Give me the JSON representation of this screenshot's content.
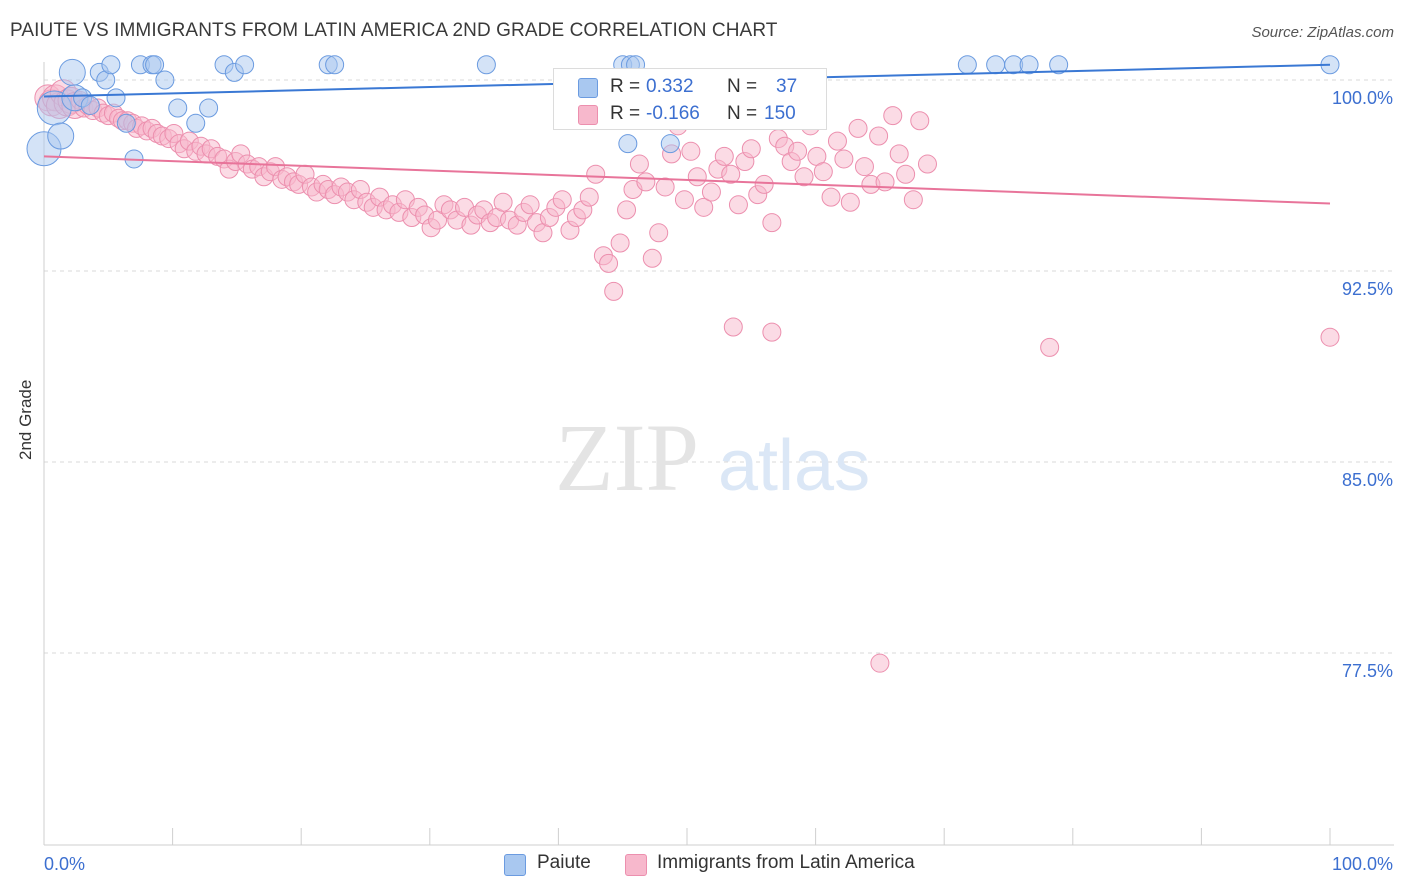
{
  "header": {
    "title": "PAIUTE VS IMMIGRANTS FROM LATIN AMERICA 2ND GRADE CORRELATION CHART",
    "source": "Source: ZipAtlas.com"
  },
  "watermark": {
    "zip": "ZIP",
    "atlas": "atlas"
  },
  "legend_top": {
    "r_label": "R =",
    "n_label": "N =",
    "series": [
      {
        "name": "Paiute",
        "r": "0.332",
        "n": "37"
      },
      {
        "name": "Immigrants from Latin America",
        "r": "-0.166",
        "n": "150"
      }
    ]
  },
  "colors": {
    "paiute_fill": "#a9c8f0",
    "paiute_stroke": "#6b9be0",
    "paiute_line": "#3a78d4",
    "latin_fill": "#f7b8cc",
    "latin_stroke": "#ec8fae",
    "latin_line": "#e8749a",
    "axis_text": "#3c6fd0",
    "grid": "#d8d8d8"
  },
  "chart_data": {
    "type": "scatter",
    "title": "PAIUTE VS IMMIGRANTS FROM LATIN AMERICA 2ND GRADE CORRELATION CHART",
    "xlabel": "",
    "ylabel": "2nd Grade",
    "xlim": [
      0,
      100
    ],
    "ylim": [
      70.0,
      101.0
    ],
    "x_tick_labels": [
      "0.0%",
      "100.0%"
    ],
    "y_ticks": [
      100.0,
      92.5,
      85.0,
      77.5
    ],
    "y_tick_labels": [
      "100.0%",
      "92.5%",
      "85.0%",
      "77.5%"
    ],
    "series": [
      {
        "name": "Paiute",
        "r": 0.332,
        "n": 37,
        "trend": {
          "x": [
            0,
            100
          ],
          "y": [
            99.35,
            100.6
          ]
        },
        "points": [
          [
            0.0,
            97.3
          ],
          [
            0.8,
            98.9
          ],
          [
            1.3,
            97.8
          ],
          [
            2.2,
            100.3
          ],
          [
            2.4,
            99.3
          ],
          [
            3.0,
            99.3
          ],
          [
            3.6,
            99.0
          ],
          [
            4.3,
            100.3
          ],
          [
            4.8,
            100.0
          ],
          [
            5.2,
            100.6
          ],
          [
            5.6,
            99.3
          ],
          [
            6.4,
            98.3
          ],
          [
            7.0,
            96.9
          ],
          [
            7.5,
            100.6
          ],
          [
            8.4,
            100.6
          ],
          [
            8.6,
            100.6
          ],
          [
            9.4,
            100.0
          ],
          [
            10.4,
            98.9
          ],
          [
            11.8,
            98.3
          ],
          [
            12.8,
            98.9
          ],
          [
            14.0,
            100.6
          ],
          [
            14.8,
            100.3
          ],
          [
            15.6,
            100.6
          ],
          [
            22.1,
            100.6
          ],
          [
            22.6,
            100.6
          ],
          [
            34.4,
            100.6
          ],
          [
            45.0,
            100.6
          ],
          [
            45.6,
            100.6
          ],
          [
            46.0,
            100.6
          ],
          [
            45.4,
            97.5
          ],
          [
            48.7,
            97.5
          ],
          [
            71.8,
            100.6
          ],
          [
            74.0,
            100.6
          ],
          [
            75.4,
            100.6
          ],
          [
            76.6,
            100.6
          ],
          [
            78.9,
            100.6
          ],
          [
            100.0,
            100.6
          ]
        ]
      },
      {
        "name": "Immigrants from Latin America",
        "r": -0.166,
        "n": 150,
        "trend": {
          "x": [
            0,
            100
          ],
          "y": [
            97.0,
            95.15
          ]
        },
        "points": [
          [
            0.3,
            99.3
          ],
          [
            0.6,
            99.1
          ],
          [
            0.9,
            99.3
          ],
          [
            1.2,
            99.0
          ],
          [
            1.5,
            99.5
          ],
          [
            1.8,
            99.1
          ],
          [
            2.1,
            99.2
          ],
          [
            2.4,
            99.0
          ],
          [
            2.8,
            99.2
          ],
          [
            3.1,
            98.9
          ],
          [
            3.4,
            99.0
          ],
          [
            3.8,
            98.8
          ],
          [
            4.2,
            98.9
          ],
          [
            4.6,
            98.7
          ],
          [
            5.0,
            98.6
          ],
          [
            5.4,
            98.7
          ],
          [
            5.8,
            98.5
          ],
          [
            6.1,
            98.4
          ],
          [
            6.5,
            98.4
          ],
          [
            6.9,
            98.3
          ],
          [
            7.2,
            98.1
          ],
          [
            7.6,
            98.2
          ],
          [
            8.0,
            98.0
          ],
          [
            8.4,
            98.1
          ],
          [
            8.8,
            97.9
          ],
          [
            9.2,
            97.8
          ],
          [
            9.7,
            97.7
          ],
          [
            10.1,
            97.9
          ],
          [
            10.5,
            97.5
          ],
          [
            10.9,
            97.3
          ],
          [
            11.3,
            97.6
          ],
          [
            11.8,
            97.2
          ],
          [
            12.2,
            97.4
          ],
          [
            12.6,
            97.1
          ],
          [
            13.0,
            97.3
          ],
          [
            13.5,
            97.0
          ],
          [
            14.0,
            96.9
          ],
          [
            14.4,
            96.5
          ],
          [
            14.9,
            96.8
          ],
          [
            15.3,
            97.1
          ],
          [
            15.8,
            96.7
          ],
          [
            16.2,
            96.5
          ],
          [
            16.7,
            96.6
          ],
          [
            17.1,
            96.2
          ],
          [
            17.6,
            96.4
          ],
          [
            18.0,
            96.6
          ],
          [
            18.5,
            96.1
          ],
          [
            18.9,
            96.2
          ],
          [
            19.4,
            96.0
          ],
          [
            19.8,
            95.9
          ],
          [
            20.3,
            96.3
          ],
          [
            20.8,
            95.8
          ],
          [
            21.2,
            95.6
          ],
          [
            21.7,
            95.9
          ],
          [
            22.1,
            95.7
          ],
          [
            22.6,
            95.5
          ],
          [
            23.1,
            95.8
          ],
          [
            23.6,
            95.6
          ],
          [
            24.1,
            95.3
          ],
          [
            24.6,
            95.7
          ],
          [
            25.1,
            95.2
          ],
          [
            25.6,
            95.0
          ],
          [
            26.1,
            95.4
          ],
          [
            26.6,
            94.9
          ],
          [
            27.1,
            95.1
          ],
          [
            27.6,
            94.8
          ],
          [
            28.1,
            95.3
          ],
          [
            28.6,
            94.6
          ],
          [
            29.1,
            95.0
          ],
          [
            29.6,
            94.7
          ],
          [
            30.1,
            94.2
          ],
          [
            30.6,
            94.5
          ],
          [
            31.1,
            95.1
          ],
          [
            31.6,
            94.9
          ],
          [
            32.1,
            94.5
          ],
          [
            32.7,
            95.0
          ],
          [
            33.2,
            94.3
          ],
          [
            33.7,
            94.7
          ],
          [
            34.2,
            94.9
          ],
          [
            34.7,
            94.4
          ],
          [
            35.2,
            94.6
          ],
          [
            35.7,
            95.2
          ],
          [
            36.2,
            94.5
          ],
          [
            36.8,
            94.3
          ],
          [
            37.3,
            94.8
          ],
          [
            37.8,
            95.1
          ],
          [
            38.3,
            94.4
          ],
          [
            38.8,
            94.0
          ],
          [
            39.3,
            94.6
          ],
          [
            39.8,
            95.0
          ],
          [
            40.3,
            95.3
          ],
          [
            40.9,
            94.1
          ],
          [
            41.4,
            94.6
          ],
          [
            41.9,
            94.9
          ],
          [
            42.4,
            95.4
          ],
          [
            42.9,
            96.3
          ],
          [
            43.5,
            93.1
          ],
          [
            43.9,
            92.8
          ],
          [
            44.3,
            91.7
          ],
          [
            44.8,
            93.6
          ],
          [
            45.3,
            94.9
          ],
          [
            45.8,
            95.7
          ],
          [
            46.3,
            96.7
          ],
          [
            46.8,
            96.0
          ],
          [
            47.3,
            93.0
          ],
          [
            47.8,
            94.0
          ],
          [
            48.3,
            95.8
          ],
          [
            48.8,
            97.1
          ],
          [
            49.3,
            98.2
          ],
          [
            49.8,
            95.3
          ],
          [
            50.3,
            97.2
          ],
          [
            50.8,
            96.2
          ],
          [
            51.3,
            95.0
          ],
          [
            51.9,
            95.6
          ],
          [
            52.4,
            96.5
          ],
          [
            52.9,
            97.0
          ],
          [
            53.4,
            96.3
          ],
          [
            54.0,
            95.1
          ],
          [
            54.5,
            96.8
          ],
          [
            55.0,
            97.3
          ],
          [
            55.5,
            95.5
          ],
          [
            56.0,
            95.9
          ],
          [
            56.6,
            94.4
          ],
          [
            57.1,
            97.7
          ],
          [
            57.6,
            97.4
          ],
          [
            58.1,
            96.8
          ],
          [
            58.6,
            97.2
          ],
          [
            59.1,
            96.2
          ],
          [
            59.6,
            98.2
          ],
          [
            60.1,
            97.0
          ],
          [
            60.6,
            96.4
          ],
          [
            61.2,
            95.4
          ],
          [
            61.7,
            97.6
          ],
          [
            62.2,
            96.9
          ],
          [
            62.7,
            95.2
          ],
          [
            63.3,
            98.1
          ],
          [
            63.8,
            96.6
          ],
          [
            64.3,
            95.9
          ],
          [
            64.9,
            97.8
          ],
          [
            65.4,
            96.0
          ],
          [
            66.0,
            98.6
          ],
          [
            66.5,
            97.1
          ],
          [
            67.0,
            96.3
          ],
          [
            67.6,
            95.3
          ],
          [
            68.1,
            98.4
          ],
          [
            68.7,
            96.7
          ],
          [
            53.6,
            90.3
          ],
          [
            56.6,
            90.1
          ],
          [
            65.0,
            77.1
          ],
          [
            78.2,
            89.5
          ],
          [
            100.0,
            89.9
          ]
        ]
      }
    ]
  },
  "bottom_legend": [
    {
      "label": "Paiute"
    },
    {
      "label": "Immigrants from Latin America"
    }
  ]
}
